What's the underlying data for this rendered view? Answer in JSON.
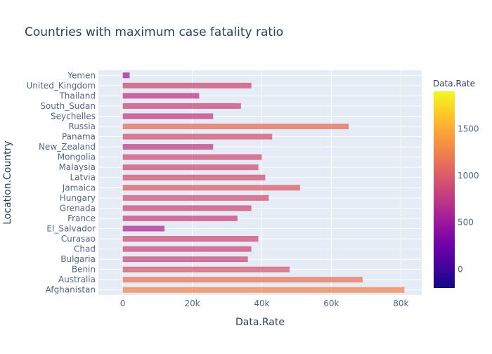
{
  "chart_data": {
    "type": "bar",
    "orientation": "horizontal",
    "title": "Countries with maximum case fatality ratio",
    "xlabel": "Data.Rate",
    "ylabel": "Location.Country",
    "xlim": [
      -7000,
      86000
    ],
    "x_ticks": [
      0,
      20000,
      40000,
      60000,
      80000
    ],
    "x_tick_labels": [
      "0",
      "20k",
      "40k",
      "60k",
      "80k"
    ],
    "grid": true,
    "y_tick_labels": [
      "Afghanistan",
      "Australia",
      "Benin",
      "Bulgaria",
      "Chad",
      "Curasao",
      "El_Salvador",
      "France",
      "Grenada",
      "Hungary",
      "Jamaica",
      "Latvia",
      "Malaysia",
      "Mongolia",
      "New_Zealand",
      "Panama",
      "Russia",
      "Seychelles",
      "South_Sudan",
      "Thailand",
      "United_Kingdom",
      "Yemen"
    ],
    "categories": [
      "Afghanistan",
      "Australia",
      "Benin",
      "Bulgaria",
      "Chad",
      "Curasao",
      "El_Salvador",
      "France",
      "Grenada",
      "Hungary",
      "Jamaica",
      "Latvia",
      "Malaysia",
      "Mongolia",
      "New_Zealand",
      "Panama",
      "Russia",
      "Seychelles",
      "South_Sudan",
      "Thailand",
      "United_Kingdom",
      "Yemen"
    ],
    "values": [
      81000,
      69000,
      48000,
      36000,
      37000,
      39000,
      12000,
      33000,
      37000,
      42000,
      51000,
      41000,
      39000,
      40000,
      26000,
      43000,
      65000,
      26000,
      34000,
      22000,
      37000,
      2000
    ],
    "color_by": "Data.Rate",
    "colorbar": {
      "title": "Data.Rate",
      "range": [
        -200,
        1900
      ],
      "ticks": [
        0,
        500,
        1000,
        1500
      ],
      "tick_labels": [
        "0",
        "500",
        "1000",
        "1500"
      ],
      "colors": [
        "#0d0887",
        "#46039f",
        "#7201a8",
        "#9c179e",
        "#bd3786",
        "#d8576b",
        "#ed7953",
        "#fb9f3a",
        "#fdca26",
        "#f0f921"
      ]
    },
    "legend": "colorbar at right"
  },
  "theme": {
    "plot_bg": "#e5ecf6",
    "grid_color": "#ffffff",
    "text_color": "#2a3f5f",
    "tick_color": "#506784"
  }
}
